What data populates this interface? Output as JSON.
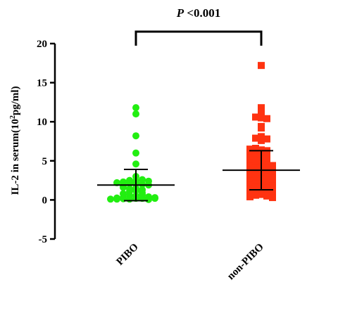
{
  "chart_data": {
    "type": "scatter",
    "title": "",
    "ylabel": "IL-2 in serum(10",
    "ylabel_sup": "2",
    "ylabel_end": "pg/ml)",
    "ylim": [
      -5,
      20
    ],
    "yticks": [
      "-5",
      "0",
      "5",
      "10",
      "15",
      "20"
    ],
    "categories": [
      "PIBO",
      "non-PIBO"
    ],
    "annotation": {
      "italic": "P",
      "text": " <0.001"
    },
    "series": [
      {
        "category": "PIBO",
        "color": "#22ee11",
        "marker": "circle",
        "mean": 1.9,
        "sd": 2.0,
        "values": [
          11.8,
          11.0,
          8.2,
          6.0,
          4.6,
          3.0,
          2.4,
          2.5,
          2.2,
          2.6,
          2.1,
          2.3,
          2.0,
          1.8,
          1.9,
          2.2,
          2.4,
          1.5,
          1.2,
          1.4,
          1.1,
          1.3,
          1.6,
          0.9,
          0.8,
          0.5,
          0.6,
          0.7,
          0.3,
          0.2,
          0.4,
          0.1,
          0.2,
          0.15,
          0.25,
          0.05,
          0.1,
          0.3,
          0.2,
          0.1
        ]
      },
      {
        "category": "non-PIBO",
        "color": "#ff3311",
        "marker": "square",
        "mean": 3.8,
        "sd": 2.5,
        "values": [
          17.2,
          11.8,
          11.4,
          11.2,
          10.5,
          10.6,
          10.4,
          9.4,
          9.2,
          8.1,
          7.9,
          7.8,
          7.6,
          6.4,
          6.6,
          6.3,
          6.5,
          6.2,
          5.9,
          6.0,
          5.8,
          5.6,
          5.5,
          5.3,
          5.4,
          5.0,
          5.1,
          4.9,
          4.8,
          4.6,
          4.7,
          4.5,
          4.3,
          4.4,
          4.2,
          4.0,
          4.1,
          3.9,
          3.8,
          3.7,
          3.6,
          3.5,
          3.4,
          3.3,
          3.2,
          3.1,
          3.0,
          2.9,
          2.8,
          2.7,
          2.6,
          2.5,
          2.4,
          2.3,
          2.2,
          2.1,
          2.0,
          1.9,
          1.8,
          1.7,
          1.6,
          1.5,
          1.4,
          1.3,
          1.2,
          1.1,
          1.0,
          0.9,
          0.8,
          0.7,
          0.6,
          0.5,
          0.4,
          0.3
        ]
      }
    ]
  }
}
